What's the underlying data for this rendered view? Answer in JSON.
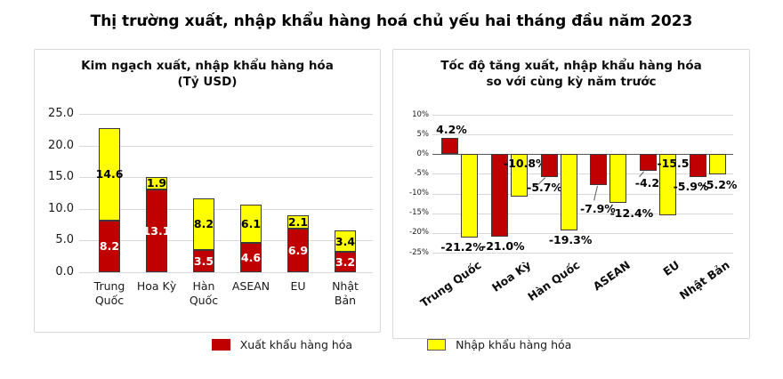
{
  "page_title": "Thị trường xuất, nhập khẩu hàng hoá chủ yếu hai tháng đầu năm 2023",
  "legend": {
    "export_label": "Xuất khẩu hàng hóa",
    "import_label": "Nhập khẩu hàng hóa"
  },
  "colors": {
    "export": "#C00000",
    "import": "#FFFF00",
    "bar_border": "#3A3A3A",
    "gridline": "#D9D9D9",
    "zero_line": "#595959",
    "panel_border": "#D9D9D9",
    "label_on_export": "#FFFFFF",
    "label_on_import": "#000000"
  },
  "chart_data": [
    {
      "type": "bar",
      "subtype": "stacked",
      "title": "Kim ngạch xuất, nhập khẩu hàng hóa",
      "subtitle": "(Tỷ USD)",
      "unit": "Tỷ USD",
      "categories": [
        "Trung Quốc",
        "Hoa Kỳ",
        "Hàn Quốc",
        "ASEAN",
        "EU",
        "Nhật Bản"
      ],
      "series": [
        {
          "name": "Xuất khẩu hàng hóa",
          "color": "#C00000",
          "values": [
            8.2,
            13.1,
            3.5,
            4.6,
            6.9,
            3.2
          ],
          "labels": [
            "8.2",
            "13.1",
            "3.5",
            "4.6",
            "6.9",
            "3.2"
          ]
        },
        {
          "name": "Nhập khẩu hàng hóa",
          "color": "#FFFF00",
          "values": [
            14.6,
            1.9,
            8.2,
            6.1,
            2.1,
            3.4
          ],
          "labels": [
            "14.6",
            "1.9",
            "8.2",
            "6.1",
            "2.1",
            "3.4"
          ]
        }
      ],
      "ylim": [
        0,
        25
      ],
      "ytick_step": 5,
      "ytick_labels": [
        "0.0",
        "5.0",
        "10.0",
        "15.0",
        "20.0",
        "25.0"
      ],
      "grid": true,
      "legend_position": "bottom-shared"
    },
    {
      "type": "bar",
      "subtype": "grouped",
      "title": "Tốc độ tăng xuất, nhập khẩu hàng hóa",
      "subtitle": "so với cùng kỳ năm trước",
      "unit": "%",
      "categories": [
        "Trung Quốc",
        "Hoa Kỳ",
        "Hàn Quốc",
        "ASEAN",
        "EU",
        "Nhật Bản"
      ],
      "series": [
        {
          "name": "Xuất khẩu hàng hóa",
          "color": "#C00000",
          "values": [
            4.2,
            -21.0,
            -5.7,
            -7.9,
            -4.2,
            -5.9
          ],
          "labels": [
            "4.2%",
            "-21.0%",
            "-5.7%",
            "-7.9%",
            "-4.2%",
            "-5.9%"
          ]
        },
        {
          "name": "Nhập khẩu hàng hóa",
          "color": "#FFFF00",
          "values": [
            -21.2,
            -10.8,
            -19.3,
            -12.4,
            -15.5,
            -5.2
          ],
          "labels": [
            "-21.2%",
            "-10.8%",
            "-19.3%",
            "-12.4%",
            "-15.5%",
            "-5.2%"
          ]
        }
      ],
      "ylim": [
        -25,
        10
      ],
      "ytick_step": 5,
      "ytick_labels": [
        "10%",
        "5%",
        "0%",
        "-5%",
        "-10%",
        "-15%",
        "-20%",
        "-25%"
      ],
      "grid": true,
      "x_label_rotation": -35,
      "legend_position": "bottom-shared"
    }
  ]
}
